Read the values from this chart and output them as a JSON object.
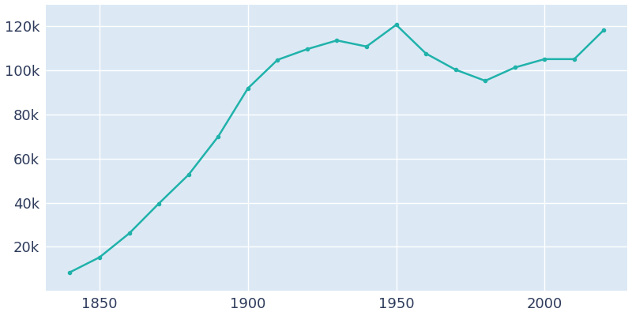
{
  "years": [
    1840,
    1850,
    1860,
    1870,
    1880,
    1890,
    1900,
    1910,
    1920,
    1930,
    1940,
    1950,
    1960,
    1970,
    1980,
    1990,
    2000,
    2010,
    2020
  ],
  "population": [
    8409,
    15215,
    26060,
    39634,
    52669,
    70028,
    91886,
    104839,
    109694,
    113643,
    110879,
    120740,
    107716,
    100361,
    95322,
    101355,
    105162,
    105162,
    118403
  ],
  "line_color": "#20B2AA",
  "marker": "o",
  "marker_size": 3,
  "line_width": 1.8,
  "plot_bg_color": "#dce9f5",
  "fig_bg_color": "#ffffff",
  "grid_color": "#ffffff",
  "xlim": [
    1832,
    2028
  ],
  "ylim": [
    0,
    130000
  ],
  "ytick_values": [
    20000,
    40000,
    60000,
    80000,
    100000,
    120000
  ],
  "ytick_labels": [
    "20k",
    "40k",
    "60k",
    "80k",
    "100k",
    "120k"
  ],
  "xtick_values": [
    1850,
    1900,
    1950,
    2000
  ],
  "xtick_labels": [
    "1850",
    "1900",
    "1950",
    "2000"
  ],
  "tick_color": "#2d3a5a",
  "tick_fontsize": 13
}
